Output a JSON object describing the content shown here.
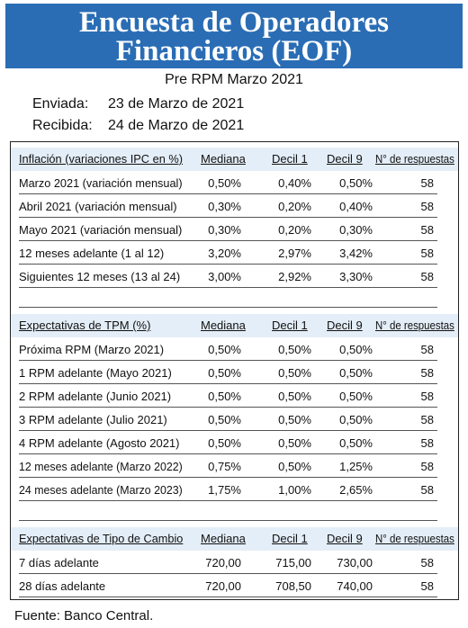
{
  "title_line1": "Encuesta de Operadores",
  "title_line2": "Financieros (EOF)",
  "subtitle": "Pre RPM Marzo 2021",
  "sent_label": "Enviada:",
  "sent_date": "23 de Marzo de 2021",
  "received_label": "Recibida:",
  "received_date": "24 de Marzo de 2021",
  "sections": [
    {
      "headers": [
        "Inflación (variaciones IPC en %)",
        "Mediana",
        "Decil 1",
        "Decil 9",
        "N° de respuestas"
      ],
      "rows": [
        [
          "Marzo 2021 (variación mensual)",
          "0,50%",
          "0,40%",
          "0,50%",
          "58"
        ],
        [
          "Abril 2021 (variación mensual)",
          "0,30%",
          "0,20%",
          "0,40%",
          "58"
        ],
        [
          "Mayo 2021 (variación mensual)",
          "0,30%",
          "0,20%",
          "0,30%",
          "58"
        ],
        [
          "12 meses adelante (1 al 12)",
          "3,20%",
          "2,97%",
          "3,42%",
          "58"
        ],
        [
          "Siguientes 12 meses (13 al 24)",
          "3,00%",
          "2,92%",
          "3,30%",
          "58"
        ]
      ]
    },
    {
      "headers": [
        "Expectativas de TPM (%)",
        "Mediana",
        "Decil 1",
        "Decil 9",
        "N° de respuestas"
      ],
      "rows": [
        [
          "Próxima RPM (Marzo 2021)",
          "0,50%",
          "0,50%",
          "0,50%",
          "58"
        ],
        [
          "1 RPM adelante (Mayo 2021)",
          "0,50%",
          "0,50%",
          "0,50%",
          "58"
        ],
        [
          "2 RPM adelante (Junio 2021)",
          "0,50%",
          "0,50%",
          "0,50%",
          "58"
        ],
        [
          "3 RPM adelante (Julio 2021)",
          "0,50%",
          "0,50%",
          "0,50%",
          "58"
        ],
        [
          "4 RPM adelante (Agosto 2021)",
          "0,50%",
          "0,50%",
          "0,50%",
          "58"
        ],
        [
          "12 meses adelante (Marzo 2022)",
          "0,75%",
          "0,50%",
          "1,25%",
          "58"
        ],
        [
          "24 meses adelante (Marzo 2023)",
          "1,75%",
          "1,00%",
          "2,65%",
          "58"
        ]
      ]
    },
    {
      "headers": [
        "Expectativas de Tipo de Cambio",
        "Mediana",
        "Decil 1",
        "Decil 9",
        "N° de respuestas"
      ],
      "rows": [
        [
          "7 días adelante",
          "720,00",
          "715,00",
          "730,00",
          "58"
        ],
        [
          "28 días adelante",
          "720,00",
          "708,50",
          "740,00",
          "58"
        ]
      ]
    }
  ],
  "source": "Fuente: Banco Central."
}
